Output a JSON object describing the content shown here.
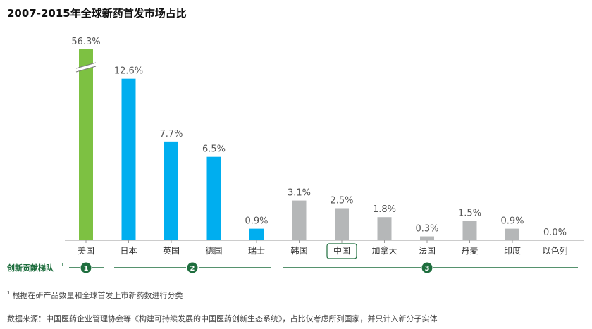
{
  "chart_data": {
    "type": "bar",
    "title": "2007-2015年全球新药首发市场占比",
    "categories": [
      "美国",
      "日本",
      "英国",
      "德国",
      "瑞士",
      "韩国",
      "中国",
      "加拿大",
      "法国",
      "丹麦",
      "印度",
      "以色列"
    ],
    "values": [
      56.3,
      12.6,
      7.7,
      6.5,
      0.9,
      3.1,
      2.5,
      1.8,
      0.3,
      1.5,
      0.9,
      0.0
    ],
    "labels": [
      "56.3%",
      "12.6%",
      "7.7%",
      "6.5%",
      "0.9%",
      "3.1%",
      "2.5%",
      "1.8%",
      "0.3%",
      "1.5%",
      "0.9%",
      "0.0%"
    ],
    "tiers": [
      1,
      2,
      2,
      2,
      2,
      3,
      3,
      3,
      3,
      3,
      3,
      3
    ],
    "tier_colors": {
      "1": "#7dc142",
      "2": "#00aeef",
      "3": "#b5b7b8"
    },
    "highlighted_category": "中国",
    "axis_break_on": "美国",
    "grid": false,
    "xlabel": "",
    "ylabel": ""
  },
  "tier_axis": {
    "label": "创新贡献梯队",
    "label_sup": "1",
    "markers": [
      "1",
      "2",
      "3"
    ],
    "color": "#1e6e3e"
  },
  "footnote": {
    "marker": "1",
    "text": "根据在研产品数量和全球首发上市新药数进行分类"
  },
  "source": "数据来源：中国医药企业管理协会等《构建可持续发展的中国医药创新生态系统》，占比仅考虑所列国家，并只计入新分子实体"
}
